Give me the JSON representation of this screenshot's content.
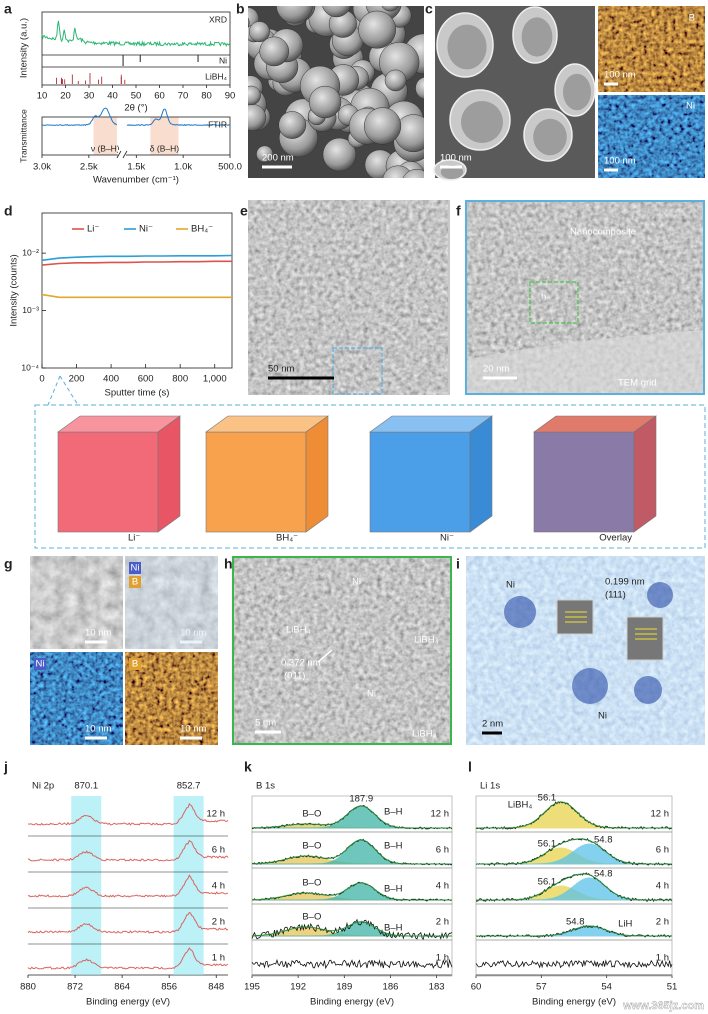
{
  "watermark": "www.365jz.com",
  "panels": {
    "a": {
      "label": "a",
      "xrd": {
        "tag": "XRD",
        "ylabel": "Intensity (a.u.)",
        "ref_ni": "Ni",
        "ref_libh4": "LiBH₄",
        "xlim": [
          10,
          90
        ],
        "xticks": [
          10,
          20,
          30,
          40,
          50,
          60,
          70,
          80,
          90
        ],
        "xlabel": "2θ (°)"
      },
      "ftir": {
        "tag": "FTIR",
        "ylabel": "Transmittance",
        "xlim": [
          3000,
          500
        ],
        "axis_break": [
          2200,
          1600
        ],
        "xticks": [
          {
            "value": 3000,
            "label": "3.0k"
          },
          {
            "value": 2500,
            "label": "2.5k"
          },
          {
            "value": 1500,
            "label": "1.5k"
          },
          {
            "value": 1000,
            "label": "1.0k"
          },
          {
            "value": 500,
            "label": "500.0"
          }
        ],
        "bands": [
          "ν (B–H)",
          "δ (B–H)"
        ],
        "band_ranges": [
          [
            2450,
            2200
          ],
          [
            1350,
            1050
          ]
        ],
        "xlabel": "Wavenumber (cm⁻¹)"
      }
    },
    "b": {
      "label": "b",
      "scale": "200 nm"
    },
    "c": {
      "label": "c",
      "scale": "100 nm",
      "map_b": {
        "tag": "B",
        "scale": "100 nm"
      },
      "map_ni": {
        "tag": "Ni",
        "scale": "100 nm"
      }
    },
    "e": {
      "label": "e",
      "scale": "50 nm"
    },
    "f": {
      "label": "f",
      "tag": "Nanocomposite",
      "inset": "h",
      "scale": "20 nm",
      "grid": "TEM grid"
    },
    "cubes": {
      "items": [
        "Li⁻",
        "BH₄⁻",
        "Ni⁻",
        "Overlay"
      ]
    },
    "g": {
      "label": "g",
      "tags": [
        "Ni",
        "B",
        "Ni",
        "B"
      ],
      "scales": [
        "10 nm",
        "10 nm",
        "10 nm",
        "10 nm"
      ]
    },
    "h": {
      "label": "h",
      "notes": [
        "Ni",
        "LiBH₄",
        "0.372 nm",
        "(011)",
        "LiBH₄",
        "Ni",
        "LiBH₄"
      ],
      "scale": "5 nm"
    },
    "i": {
      "label": "i",
      "notes": [
        "Ni",
        "0.199 nm",
        "(111)",
        "Ni"
      ],
      "scale": "2 nm"
    },
    "j": {
      "label": "j",
      "element": "Ni 2p",
      "xlim": [
        880,
        846
      ],
      "xticks": [
        880,
        872,
        864,
        856,
        848
      ],
      "xlabel": "Binding energy (eV)",
      "times": [
        "12 h",
        "6 h",
        "4 h",
        "2 h",
        "1 h"
      ],
      "peaks": [
        870.1,
        852.7
      ]
    },
    "k": {
      "label": "k",
      "element": "B 1s",
      "xlim": [
        195,
        182
      ],
      "xticks": [
        195,
        192,
        189,
        186,
        183
      ],
      "xlabel": "Binding energy (eV)",
      "times": [
        "12 h",
        "6 h",
        "4 h",
        "2 h",
        "1 h"
      ],
      "rows": [
        {
          "peak": 187.9,
          "labels": [
            "B–O",
            "B–H"
          ]
        },
        {
          "labels": [
            "B–O",
            "B–H"
          ]
        },
        {
          "labels": [
            "B–O",
            "B–H"
          ]
        },
        {
          "labels": [
            "B–O",
            "B–H"
          ]
        }
      ]
    },
    "l": {
      "label": "l",
      "element": "Li 1s",
      "xlim": [
        60,
        51
      ],
      "xticks": [
        60,
        57,
        54,
        51
      ],
      "xlabel": "Binding energy (eV)",
      "times": [
        "12 h",
        "6 h",
        "4 h",
        "2 h",
        "1 h"
      ],
      "rows": [
        {
          "labels": [
            "LiBH₄"
          ],
          "peaks": [
            56.1
          ]
        },
        {
          "peaks": [
            56.1,
            54.8
          ]
        },
        {
          "peaks": [
            56.1,
            54.8
          ]
        },
        {
          "labels": [
            "LiH"
          ],
          "peaks": [
            54.8
          ]
        }
      ]
    }
  },
  "chart_data": {
    "type": "line",
    "panel_label": "d",
    "ylabel": "Intensity (counts)",
    "xlabel": "Sputter time (s)",
    "yscale": "log",
    "x": [
      0,
      100,
      200,
      300,
      400,
      500,
      600,
      700,
      800,
      900,
      1000,
      1100
    ],
    "series": [
      {
        "name": "Li⁻",
        "color": "#d9534f",
        "values": [
          0.0062,
          0.0066,
          0.0068,
          0.0068,
          0.0069,
          0.0069,
          0.007,
          0.007,
          0.0071,
          0.0071,
          0.0072,
          0.0072
        ]
      },
      {
        "name": "Ni⁻",
        "color": "#2a9fd6",
        "values": [
          0.0075,
          0.0082,
          0.0085,
          0.0087,
          0.0088,
          0.0088,
          0.0089,
          0.0089,
          0.009,
          0.009,
          0.009,
          0.0091
        ]
      },
      {
        "name": "BH₄⁻",
        "color": "#e0a82e",
        "values": [
          0.0019,
          0.0017,
          0.0017,
          0.0017,
          0.0017,
          0.0017,
          0.0017,
          0.0017,
          0.0017,
          0.0017,
          0.0017,
          0.0017
        ]
      }
    ],
    "xlim": [
      0,
      1100
    ],
    "ylim": [
      0.0001,
      0.05
    ],
    "xticks": [
      0,
      200,
      400,
      600,
      800,
      {
        "value": 1000,
        "label": "1,000"
      }
    ],
    "yticks": [
      {
        "value": 0.0001,
        "label": "10⁻⁴"
      },
      {
        "value": 0.001,
        "label": "10⁻³"
      },
      {
        "value": 0.01,
        "label": "10⁻²"
      }
    ],
    "legend": "top"
  }
}
